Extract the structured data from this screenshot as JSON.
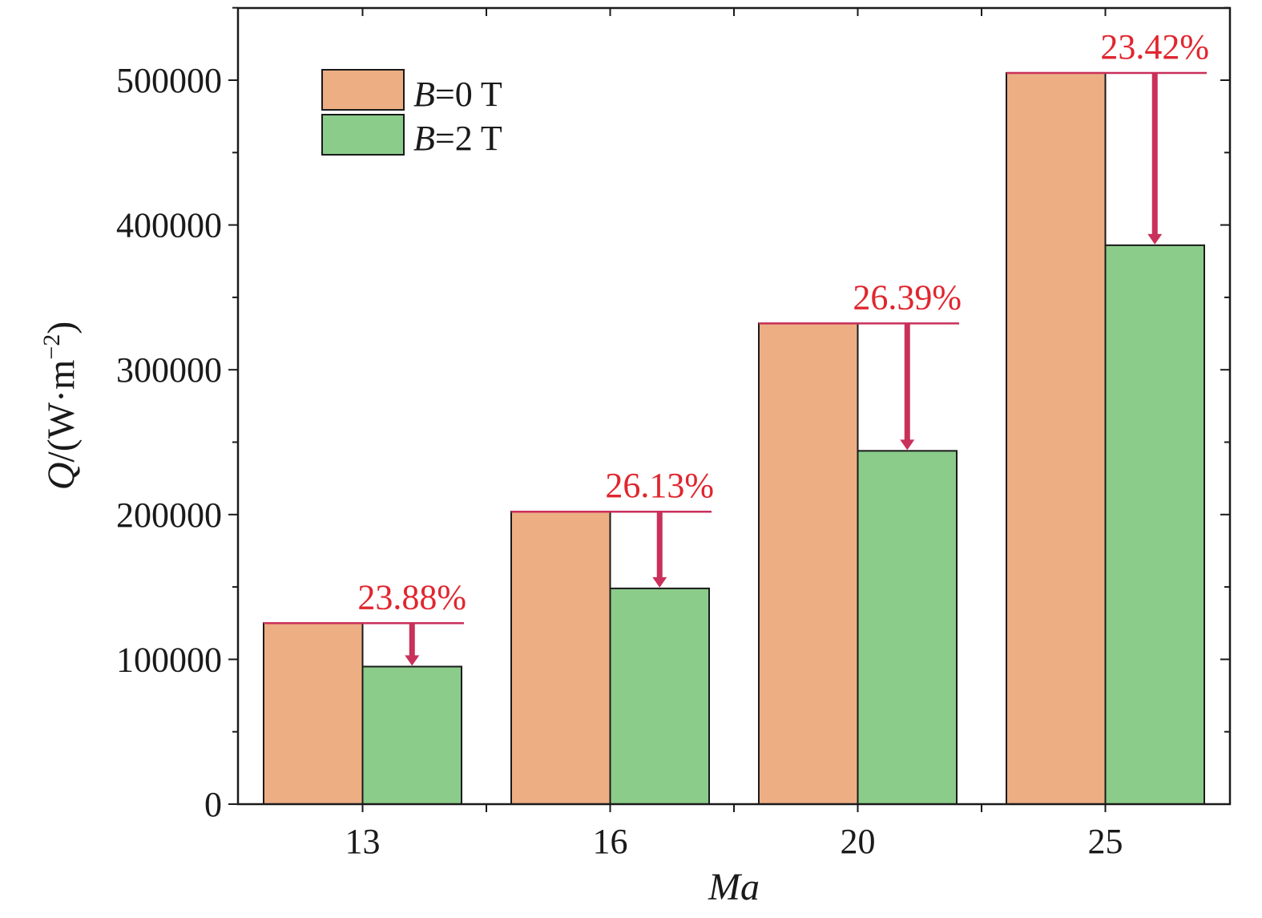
{
  "chart_data": {
    "type": "bar",
    "categories": [
      "13",
      "16",
      "20",
      "25"
    ],
    "series": [
      {
        "name": "B=0 T",
        "name_var": "B",
        "name_rest": "=0 T",
        "values": [
          125000,
          202000,
          332000,
          505000
        ],
        "color": "#edae84"
      },
      {
        "name": "B=2 T",
        "name_var": "B",
        "name_rest": "=2 T",
        "values": [
          95000,
          149000,
          244000,
          386000
        ],
        "color": "#8bcc8a"
      }
    ],
    "annotations": [
      "23.88%",
      "26.13%",
      "26.39%",
      "23.42%"
    ],
    "annotation_color": "#e0262f",
    "arrow_color": "#c9305a",
    "xlabel": "Ma",
    "ylabel_var": "Q",
    "ylabel_unit": "/(W·m",
    "ylabel_exp": "−2",
    "ylabel_close": ")",
    "ylim": [
      0,
      550000
    ],
    "yticks": [
      0,
      100000,
      200000,
      300000,
      400000,
      500000
    ],
    "ytick_labels": [
      "0",
      "100000",
      "200000",
      "300000",
      "400000",
      "500000"
    ],
    "legend_position": "top-left",
    "grid": false
  }
}
